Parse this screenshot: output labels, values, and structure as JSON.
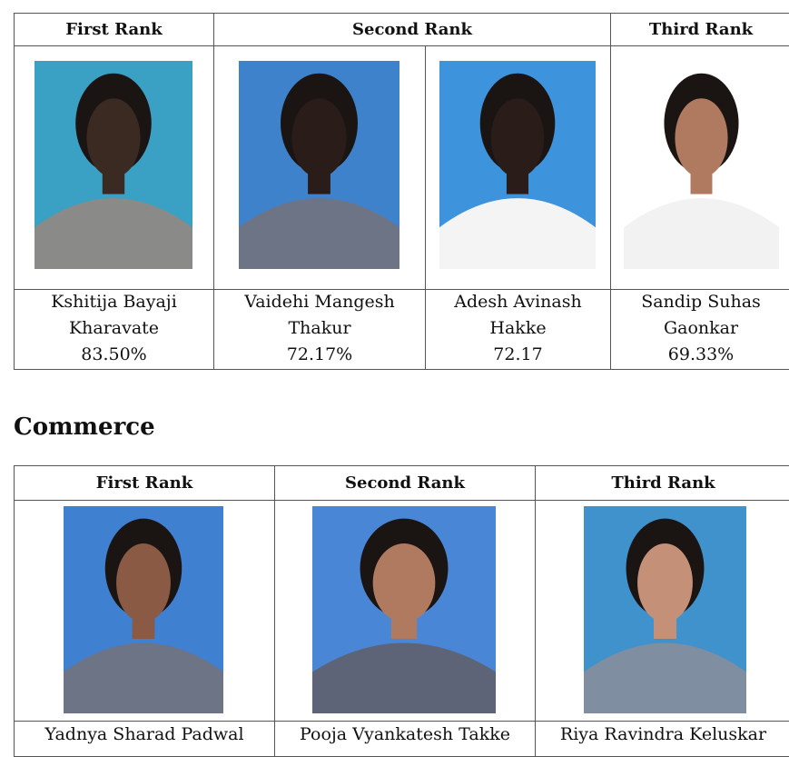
{
  "science": {
    "headers": [
      "First Rank",
      "Second Rank",
      "Third Rank"
    ],
    "students": [
      {
        "name": [
          "Kshitija Bayaji",
          "Kharavate"
        ],
        "score": "83.50%"
      },
      {
        "name": [
          "Vaidehi Mangesh",
          "Thakur"
        ],
        "score": "72.17%"
      },
      {
        "name": [
          "Adesh Avinash",
          "Hakke"
        ],
        "score": "72.17"
      },
      {
        "name": [
          "Sandip Suhas",
          "Gaonkar"
        ],
        "score": "69.33%"
      }
    ]
  },
  "commerce": {
    "title": "Commerce",
    "headers": [
      "First Rank",
      "Second Rank",
      "Third Rank"
    ],
    "students": [
      {
        "name": "Yadnya Sharad Padwal"
      },
      {
        "name": "Pooja Vyankatesh Takke"
      },
      {
        "name": "Riya Ravindra Keluskar"
      }
    ]
  }
}
